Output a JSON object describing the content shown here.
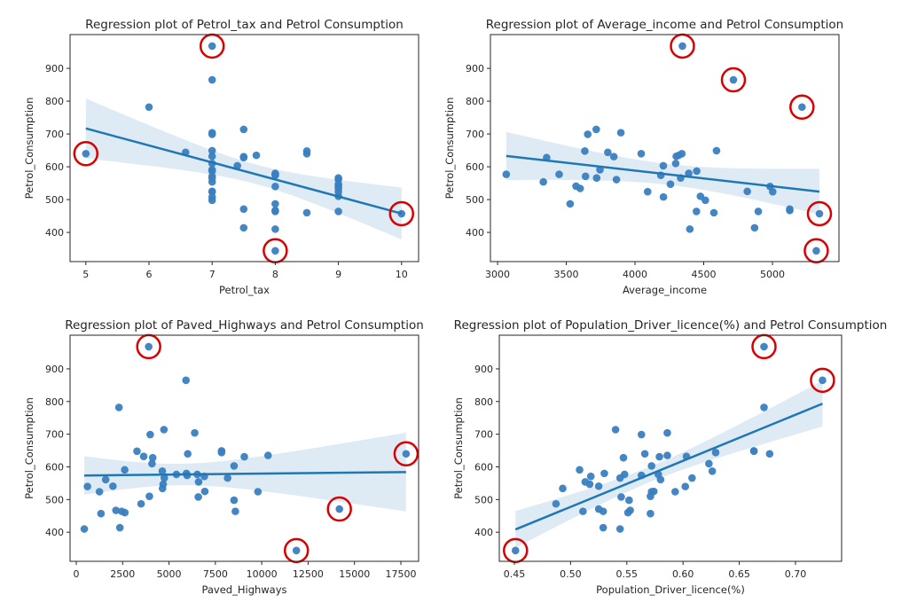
{
  "chart_data": [
    {
      "type": "scatter",
      "title": "Regression plot of Petrol_tax and Petrol Consumption",
      "xlabel": "Petrol_tax",
      "ylabel": "Petrol_Consumption",
      "xlim": [
        4.75,
        10.27
      ],
      "ylim": [
        311,
        1003
      ],
      "xticks": [
        5,
        6,
        7,
        8,
        9,
        10
      ],
      "xtick_labels": [
        "5",
        "6",
        "7",
        "8",
        "9",
        "10"
      ],
      "yticks": [
        400,
        500,
        600,
        700,
        800,
        900
      ],
      "x": [
        9,
        9,
        9,
        7.5,
        8,
        10,
        8,
        8,
        8,
        7,
        8,
        7.5,
        7,
        7,
        7,
        7.7,
        7.4,
        7.5,
        7,
        8.5,
        7,
        8,
        9,
        9,
        8.5,
        9,
        8,
        7.5,
        8,
        9,
        7,
        7,
        8,
        7.5,
        8,
        6.58,
        5,
        7,
        8.5,
        7,
        7,
        7,
        7,
        7,
        6,
        9,
        7,
        7
      ],
      "highlighted_x": [
        7,
        5,
        10,
        8
      ],
      "highlighted_y": [
        968,
        640,
        457,
        344
      ]
    },
    {
      "type": "scatter",
      "title": "Regression plot of Average_income and Petrol Consumption",
      "xlabel": "Average_income",
      "ylabel": "Petrol_Consumption",
      "xlim": [
        2948,
        5484
      ],
      "ylim": [
        311,
        1003
      ],
      "xticks": [
        3000,
        3500,
        4000,
        4500,
        5000
      ],
      "xtick_labels": [
        "3000",
        "3500",
        "4000",
        "4500",
        "5000"
      ],
      "yticks": [
        400,
        500,
        600,
        700,
        800,
        900
      ],
      "x": [
        3571,
        4092,
        3865,
        4870,
        4399,
        5342,
        5319,
        5126,
        4447,
        4512,
        4391,
        5126,
        4817,
        4207,
        4332,
        4318,
        4206,
        3718,
        4716,
        4341,
        4593,
        4983,
        4897,
        4258,
        4574,
        3721,
        3448,
        3846,
        4188,
        3601,
        3640,
        3333,
        3063,
        3357,
        3528,
        3802,
        4045,
        3897,
        3635,
        4345,
        4449,
        3656,
        4300,
        3745,
        5215,
        4476,
        4296,
        5002
      ],
      "highlighted_x": [
        4345,
        4716,
        5215,
        5342,
        5319
      ],
      "highlighted_y": [
        968,
        865,
        782,
        457,
        344
      ]
    },
    {
      "type": "scatter",
      "title": "Regression plot of Paved_Highways and Petrol Consumption",
      "xlabel": "Paved_Highways",
      "ylabel": "Petrol_Consumption",
      "xlim": [
        -335,
        18456
      ],
      "ylim": [
        311,
        1003
      ],
      "xticks": [
        0,
        2500,
        5000,
        7500,
        10000,
        12500,
        15000,
        17500
      ],
      "xtick_labels": [
        "0",
        "2500",
        "5000",
        "7500",
        "10000",
        "12500",
        "15000",
        "17500"
      ],
      "yticks": [
        400,
        500,
        600,
        700,
        800,
        900
      ],
      "x": [
        1976,
        1250,
        1586,
        2351,
        431,
        1333,
        11868,
        2138,
        8577,
        8507,
        5939,
        14186,
        6930,
        6580,
        8159,
        10340,
        8508,
        4725,
        5915,
        6010,
        7834,
        602,
        2449,
        4686,
        2619,
        4746,
        5399,
        9061,
        5975,
        4650,
        6905,
        6594,
        6524,
        4121,
        3495,
        7834,
        17782,
        6385,
        3274,
        3905,
        4639,
        3985,
        3635,
        2611,
        2302,
        3942,
        4083,
        9794
      ],
      "highlighted_x": [
        3905,
        17782,
        14186,
        11868
      ],
      "highlighted_y": [
        968,
        640,
        471,
        344
      ]
    },
    {
      "type": "scatter",
      "title": "Regression plot of Population_Driver_licence(%) and Petrol Consumption",
      "xlabel": "Population_Driver_licence(%)",
      "ylabel": "Petrol_Consumption",
      "xlim": [
        0.4366,
        0.741
      ],
      "ylim": [
        311,
        1003
      ],
      "xticks": [
        0.45,
        0.5,
        0.55,
        0.6,
        0.65,
        0.7
      ],
      "xtick_labels": [
        "0.45",
        "0.50",
        "0.55",
        "0.60",
        "0.65",
        "0.70"
      ],
      "yticks": [
        400,
        500,
        600,
        700,
        800,
        900
      ],
      "x": [
        0.525,
        0.572,
        0.58,
        0.529,
        0.544,
        0.571,
        0.451,
        0.553,
        0.529,
        0.552,
        0.53,
        0.525,
        0.574,
        0.545,
        0.608,
        0.586,
        0.572,
        0.54,
        0.724,
        0.677,
        0.663,
        0.602,
        0.511,
        0.517,
        0.551,
        0.544,
        0.548,
        0.579,
        0.563,
        0.493,
        0.518,
        0.513,
        0.578,
        0.547,
        0.487,
        0.629,
        0.566,
        0.586,
        0.663,
        0.672,
        0.626,
        0.563,
        0.603,
        0.508,
        0.672,
        0.571,
        0.623,
        0.593
      ],
      "highlighted_x": [
        0.672,
        0.724,
        0.451
      ],
      "highlighted_y": [
        968,
        865,
        344
      ]
    }
  ],
  "y": [
    541,
    524,
    561,
    414,
    410,
    457,
    344,
    467,
    464,
    498,
    580,
    471,
    525,
    508,
    566,
    635,
    603,
    714,
    865,
    640,
    649,
    540,
    464,
    547,
    460,
    566,
    577,
    631,
    574,
    534,
    571,
    554,
    577,
    628,
    487,
    644,
    640,
    704,
    648,
    968,
    587,
    699,
    632,
    591,
    782,
    510,
    610,
    524
  ],
  "colors": {
    "points": "#3a80c0",
    "line": "#1f77b4",
    "band": "#1f77b4",
    "highlight": "#d90000"
  }
}
